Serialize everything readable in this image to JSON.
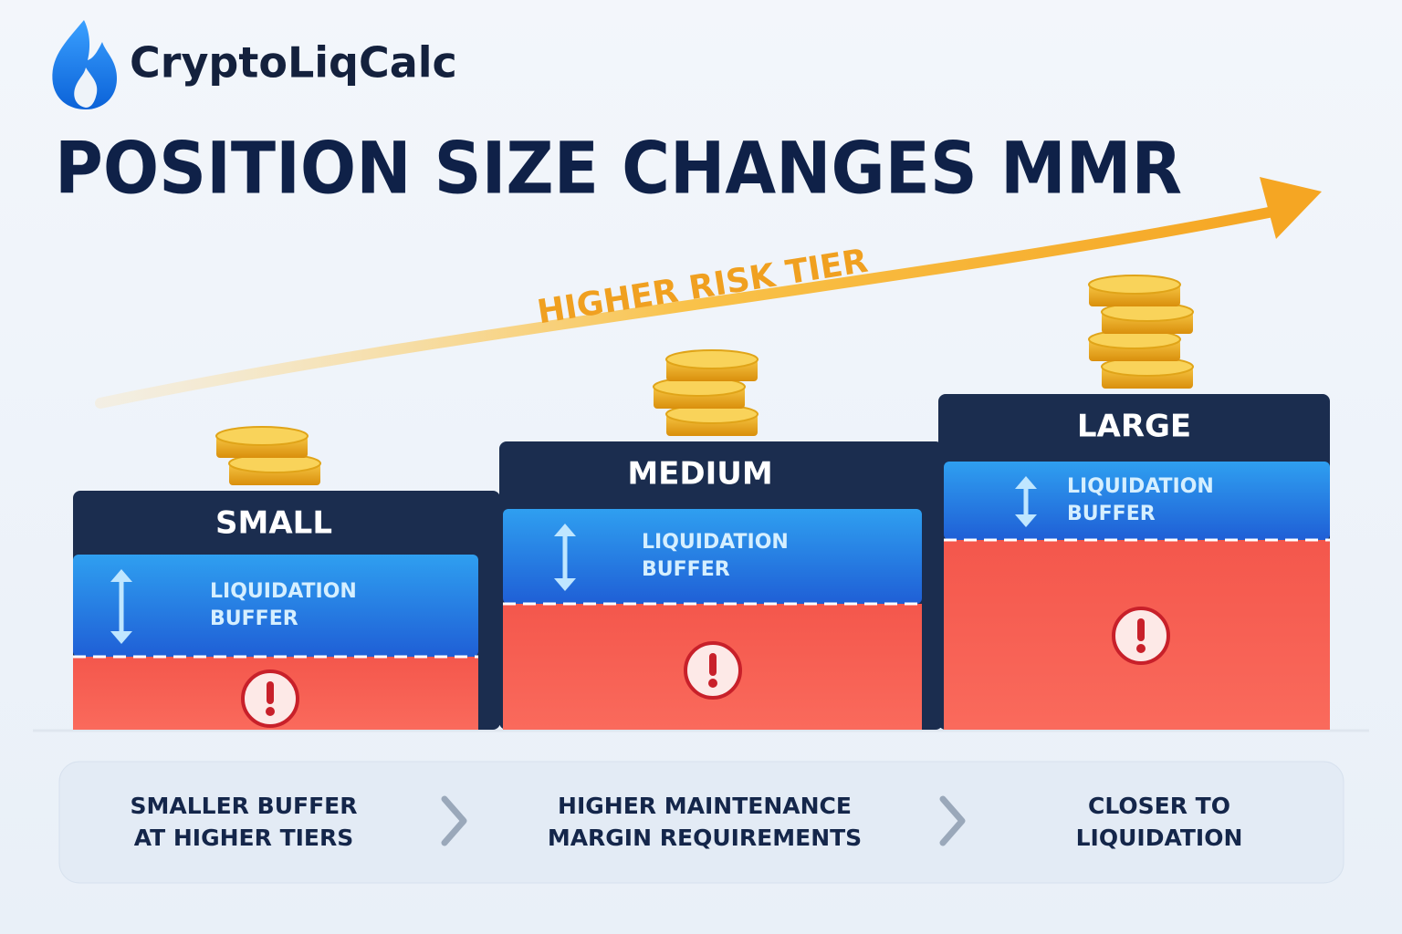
{
  "brand": "CryptoLiqCalc",
  "title": "POSITION SIZE CHANGES MMR",
  "arrow_label": "HIGHER RISK TIER",
  "tiers": [
    {
      "name": "SMALL",
      "buffer_label": [
        "LIQUIDATION",
        "BUFFER"
      ]
    },
    {
      "name": "MEDIUM",
      "buffer_label": [
        "LIQUIDATION",
        "BUFFER"
      ]
    },
    {
      "name": "LARGE",
      "buffer_label": [
        "LIQUIDATION",
        "BUFFER"
      ]
    }
  ],
  "footer": [
    {
      "lines": [
        "SMALLER BUFFER",
        "AT HIGHER TIERS"
      ]
    },
    {
      "lines": [
        "HIGHER MAINTENANCE",
        "MARGIN REQUIREMENTS"
      ]
    },
    {
      "lines": [
        "CLOSER TO",
        "LIQUIDATION"
      ]
    }
  ]
}
